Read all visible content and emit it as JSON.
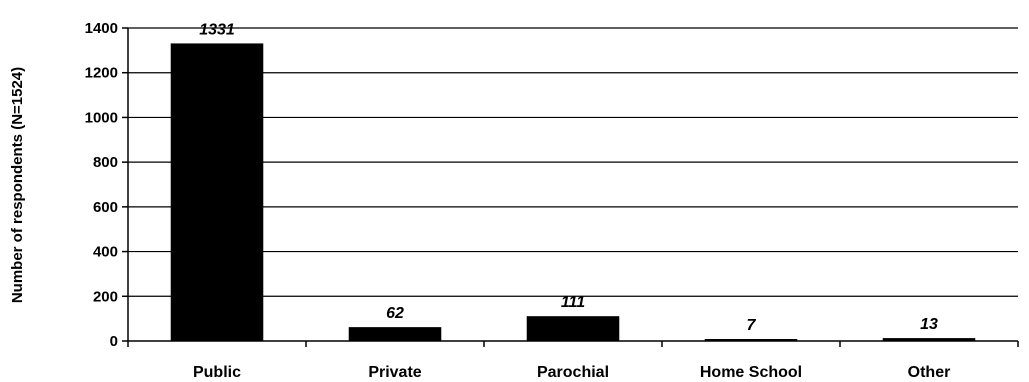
{
  "chart_data": {
    "type": "bar",
    "title": "",
    "xlabel": "",
    "ylabel": "Number of respondents (N=1524)",
    "categories": [
      "Public",
      "Private",
      "Parochial",
      "Home School",
      "Other"
    ],
    "values": [
      1331,
      62,
      111,
      7,
      13
    ],
    "data_labels": [
      "1331",
      "62",
      "111",
      "7",
      "13"
    ],
    "ylim": [
      0,
      1400
    ],
    "yticks": [
      0,
      200,
      400,
      600,
      800,
      1000,
      1200,
      1400
    ],
    "grid": true,
    "legend": "none",
    "bar_color": "#000000",
    "label_style": "bold italic"
  }
}
